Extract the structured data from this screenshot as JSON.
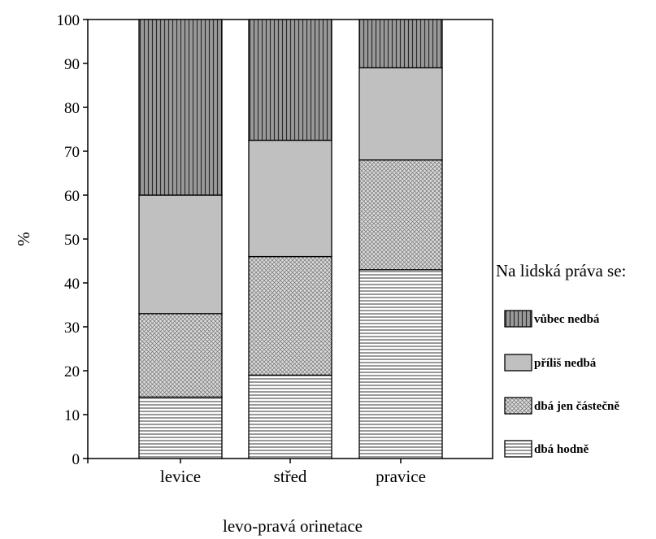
{
  "chart_data": {
    "type": "bar",
    "stacked": true,
    "percent": true,
    "title": "",
    "xlabel": "levo-pravá orinetace",
    "ylabel": "%",
    "ylim": [
      0,
      100
    ],
    "yticks": [
      0,
      10,
      20,
      30,
      40,
      50,
      60,
      70,
      80,
      90,
      100
    ],
    "categories": [
      "levice",
      "střed",
      "pravice"
    ],
    "series": [
      {
        "name": "dbá hodně",
        "pattern": "horizontal-lines",
        "fill": "#ffffff",
        "values": [
          14,
          19,
          43
        ]
      },
      {
        "name": "dbá jen částečně",
        "pattern": "crosshatch",
        "fill": "#d8d8d8",
        "values": [
          19,
          27,
          25
        ]
      },
      {
        "name": "příliš nedbá",
        "pattern": "solid",
        "fill": "#c0c0c0",
        "values": [
          27,
          26.5,
          21
        ]
      },
      {
        "name": "vůbec nedbá",
        "pattern": "vertical-lines",
        "fill": "#8c8c8c",
        "values": [
          40,
          27.5,
          11
        ]
      }
    ],
    "legend": {
      "title": "Na lidská práva se:",
      "placement": "right",
      "order": [
        "vůbec nedbá",
        "příliš nedbá",
        "dbá jen částečně",
        "dbá hodně"
      ]
    },
    "grid": false,
    "colors": {
      "axis": "#000000",
      "frame": "#000000",
      "background": "#ffffff"
    }
  }
}
